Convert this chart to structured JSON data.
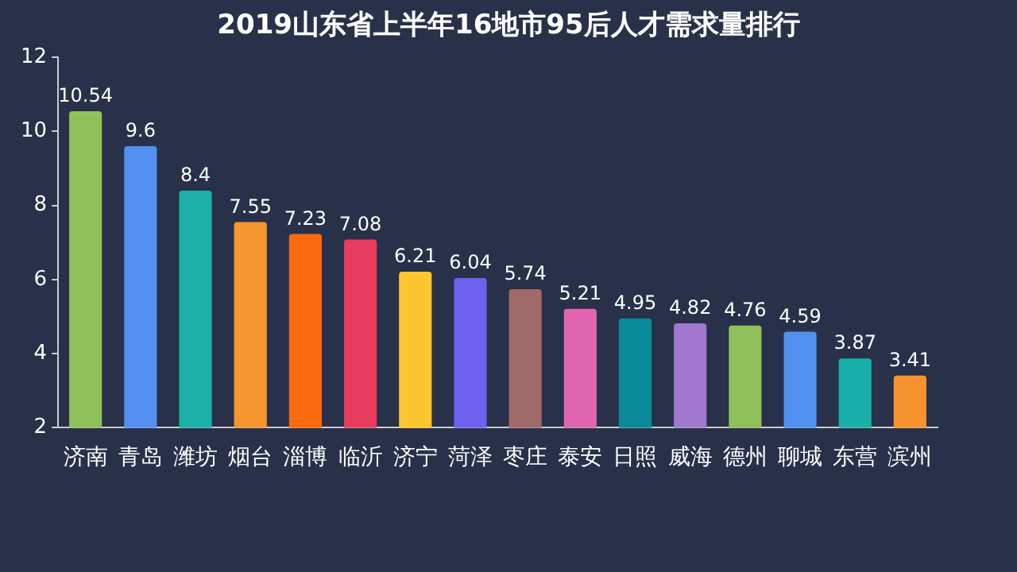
{
  "chart_data": {
    "type": "bar",
    "title": "2019山东省上半年16地市95后人才需求量排行",
    "categories": [
      "济南",
      "青岛",
      "潍坊",
      "烟台",
      "淄博",
      "临沂",
      "济宁",
      "菏泽",
      "枣庄",
      "泰安",
      "日照",
      "威海",
      "德州",
      "聊城",
      "东营",
      "滨州"
    ],
    "values": [
      10.54,
      9.6,
      8.4,
      7.55,
      7.23,
      7.08,
      6.21,
      6.04,
      5.74,
      5.21,
      4.95,
      4.82,
      4.76,
      4.59,
      3.87,
      3.41
    ],
    "colors": [
      "#8fc15a",
      "#5590f0",
      "#1bb0a8",
      "#f7962e",
      "#f86a0e",
      "#e83c5e",
      "#fcc62e",
      "#7060f0",
      "#a06a68",
      "#e065b0",
      "#0a8a98",
      "#a078d0",
      "#90c05a",
      "#5090f0",
      "#18b0a8",
      "#f8922e"
    ],
    "ylim": [
      2,
      12
    ],
    "yticks": [
      2,
      4,
      6,
      8,
      10,
      12
    ],
    "grid": false,
    "data_labels": true
  }
}
